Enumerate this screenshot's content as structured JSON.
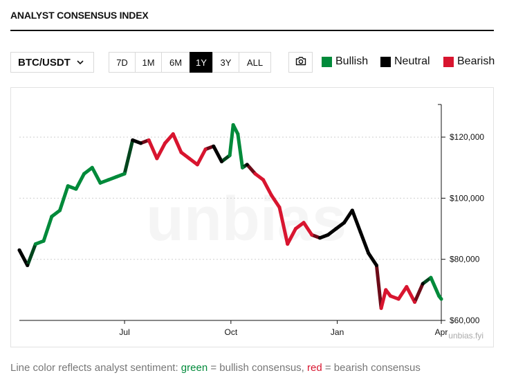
{
  "header": {
    "title": "ANALYST CONSENSUS INDEX"
  },
  "toolbar": {
    "pair": "BTC/USDT",
    "ranges": [
      "7D",
      "1M",
      "6M",
      "1Y",
      "3Y",
      "ALL"
    ],
    "active_range": "1Y",
    "camera_icon": "camera-icon"
  },
  "legend": {
    "bullish": {
      "label": "Bullish",
      "color": "#008a3a"
    },
    "neutral": {
      "label": "Neutral",
      "color": "#000000"
    },
    "bearish": {
      "label": "Bearish",
      "color": "#d8152f"
    }
  },
  "watermark": {
    "big": "unbias",
    "small": "unbias.fyi"
  },
  "caption": {
    "prefix": "Line color reflects analyst sentiment: ",
    "green_word": "green",
    "mid": " = bullish consensus, ",
    "red_word": "red",
    "suffix": " = bearish consensus"
  },
  "chart_data": {
    "type": "line",
    "title": "",
    "xlabel": "",
    "ylabel": "",
    "x_ticks": [
      "Jul",
      "Oct",
      "Jan",
      "Apr"
    ],
    "y_ticks": [
      "$60,000",
      "$80,000",
      "$100,000",
      "$120,000"
    ],
    "ylim": [
      60000,
      130000
    ],
    "grid": "horizontal dotted",
    "y_axis_position": "right",
    "legend_position": "top-right",
    "sentiment_encoding": "line color: 1 = bullish (green), 0 = neutral (black), -1 = bearish (red)",
    "dates": [
      "2025-04-01",
      "2025-04-08",
      "2025-04-15",
      "2025-04-22",
      "2025-04-29",
      "2025-05-06",
      "2025-05-13",
      "2025-05-20",
      "2025-05-27",
      "2025-06-03",
      "2025-06-10",
      "2025-06-17",
      "2025-06-24",
      "2025-07-01",
      "2025-07-08",
      "2025-07-15",
      "2025-07-22",
      "2025-07-29",
      "2025-08-05",
      "2025-08-12",
      "2025-08-19",
      "2025-08-26",
      "2025-09-02",
      "2025-09-09",
      "2025-09-16",
      "2025-09-23",
      "2025-09-30",
      "2025-10-03",
      "2025-10-07",
      "2025-10-11",
      "2025-10-15",
      "2025-10-22",
      "2025-10-29",
      "2025-11-05",
      "2025-11-12",
      "2025-11-19",
      "2025-11-26",
      "2025-12-03",
      "2025-12-10",
      "2025-12-17",
      "2025-12-24",
      "2025-12-31",
      "2026-01-07",
      "2026-01-14",
      "2026-01-21",
      "2026-01-28",
      "2026-02-04",
      "2026-02-08",
      "2026-02-12",
      "2026-02-16",
      "2026-02-23",
      "2026-03-02",
      "2026-03-09",
      "2026-03-16",
      "2026-03-23",
      "2026-03-30",
      "2026-04-01"
    ],
    "series": [
      {
        "values": [
          83000,
          78000,
          85000,
          86000,
          94000,
          96000,
          104000,
          103000,
          108000,
          110000,
          105000,
          106000,
          107000,
          108000,
          119000,
          118000,
          119000,
          113000,
          118000,
          121000,
          115000,
          113000,
          111000,
          116000,
          117000,
          112000,
          114000,
          124000,
          121000,
          110000,
          111000,
          108000,
          106000,
          101000,
          97000,
          85000,
          90000,
          92000,
          88000,
          87000,
          88000,
          90000,
          92000,
          96000,
          89000,
          82000,
          78000,
          64000,
          70000,
          68000,
          67000,
          71000,
          66000,
          72000,
          74000,
          68000,
          67000
        ],
        "sentiment": [
          0,
          0,
          1,
          1,
          1,
          1,
          1,
          1,
          1,
          1,
          1,
          1,
          1,
          1,
          0,
          0,
          -1,
          -1,
          -1,
          -1,
          -1,
          -1,
          -1,
          -1,
          0,
          0,
          1,
          1,
          1,
          1,
          0,
          -1,
          -1,
          -1,
          -1,
          -1,
          -1,
          -1,
          -1,
          0,
          0,
          0,
          0,
          0,
          0,
          0,
          0,
          -1,
          -1,
          -1,
          -1,
          -1,
          -1,
          0,
          1,
          1,
          1
        ]
      }
    ]
  }
}
